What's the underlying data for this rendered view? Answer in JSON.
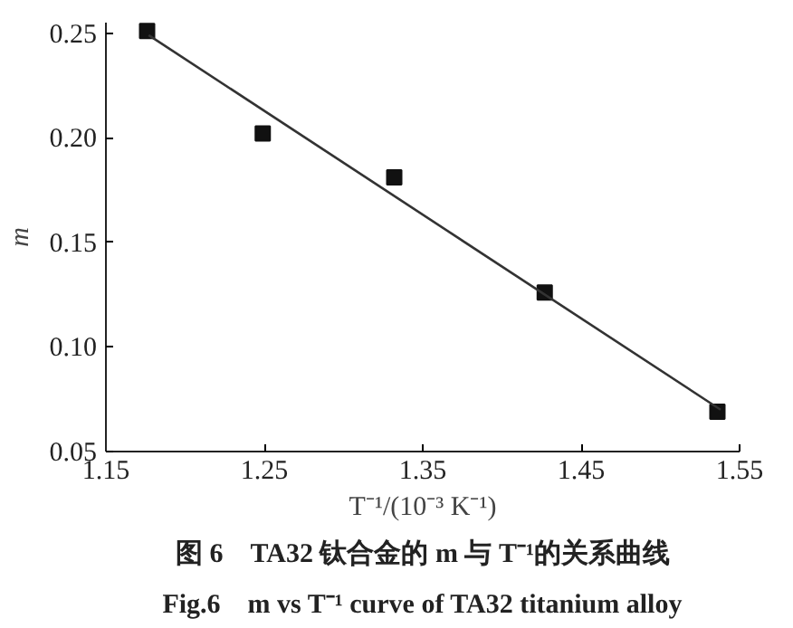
{
  "chart_data": {
    "type": "scatter",
    "xlabel": "T⁻¹/(10⁻³ K⁻¹)",
    "ylabel": "m",
    "annotations": [
      "图 6　TA32 钛合金的 m 与 T⁻¹的关系曲线",
      "Fig.6　m vs T⁻¹ curve of TA32 titanium alloy"
    ],
    "x": [
      1.176,
      1.249,
      1.332,
      1.427,
      1.536
    ],
    "series": [
      {
        "color": "#111111",
        "values": [
          0.251,
          0.202,
          0.181,
          0.126,
          0.069
        ],
        "marker": "square"
      },
      {
        "type": "line",
        "color": "#333333",
        "x": [
          1.177,
          1.538
        ],
        "values": [
          0.249,
          0.07
        ],
        "marker": "none",
        "line_style": "solid"
      }
    ],
    "xlim": [
      1.15,
      1.55
    ],
    "ylim": [
      0.05,
      0.255
    ],
    "xticks": [
      1.15,
      1.25,
      1.35,
      1.45,
      1.55
    ],
    "yticks": [
      {
        "value": 0.05,
        "label": "0.05"
      },
      {
        "value": 0.1,
        "label": "0.10"
      },
      {
        "value": 0.15,
        "label": "0.15"
      },
      {
        "value": 0.2,
        "label": "0.20"
      },
      {
        "value": 0.25,
        "label": "0.25"
      }
    ],
    "grid": false
  }
}
